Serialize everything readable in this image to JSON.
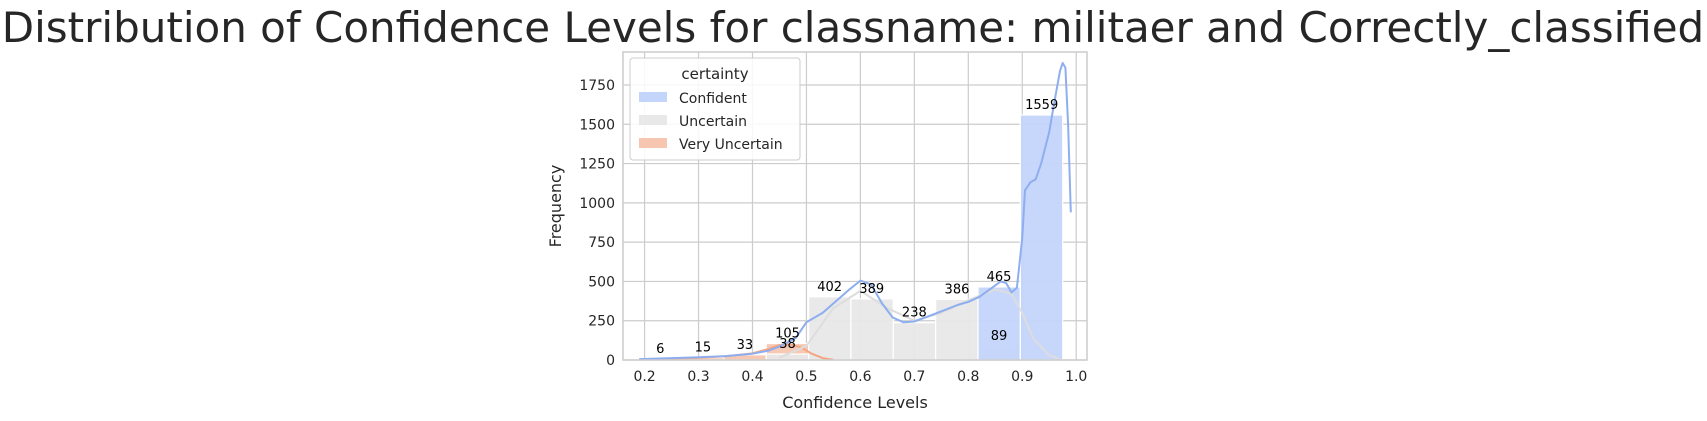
{
  "chart_data": {
    "type": "bar",
    "title": "Distribution of Confidence Levels for classname: militaer and Correctly_classified",
    "xlabel": "Confidence Levels",
    "ylabel": "Frequency",
    "xlim": [
      0.16,
      1.02
    ],
    "ylim": [
      0,
      1960
    ],
    "x_ticks": [
      "0.2",
      "0.3",
      "0.4",
      "0.5",
      "0.6",
      "0.7",
      "0.8",
      "0.9",
      "1.0"
    ],
    "x_tick_values": [
      0.2,
      0.3,
      0.4,
      0.5,
      0.6,
      0.7,
      0.8,
      0.9,
      1.0
    ],
    "y_ticks": [
      "0",
      "250",
      "500",
      "750",
      "1000",
      "1250",
      "1500",
      "1750"
    ],
    "y_tick_values": [
      0,
      250,
      500,
      750,
      1000,
      1250,
      1500,
      1750
    ],
    "grid": true,
    "legend": {
      "title": "certainty",
      "placement": "top-left",
      "entries": [
        {
          "label": "Confident",
          "color": "#c4d5fb"
        },
        {
          "label": "Uncertain",
          "color": "#e8e8e8"
        },
        {
          "label": "Very Uncertain",
          "color": "#f7c6b0"
        }
      ]
    },
    "bin_edges": [
      0.19,
      0.2685,
      0.347,
      0.4255,
      0.504,
      0.5825,
      0.661,
      0.7395,
      0.818,
      0.8965,
      0.975
    ],
    "series": [
      {
        "name": "Very Uncertain",
        "color": "#f7c6b0",
        "line_color": "#f4a582",
        "values": [
          6,
          15,
          33,
          105,
          0,
          0,
          0,
          0,
          0,
          0
        ],
        "kde": [
          [
            0.19,
            4
          ],
          [
            0.25,
            8
          ],
          [
            0.3,
            14
          ],
          [
            0.35,
            24
          ],
          [
            0.4,
            42
          ],
          [
            0.43,
            70
          ],
          [
            0.45,
            95
          ],
          [
            0.47,
            100
          ],
          [
            0.49,
            80
          ],
          [
            0.51,
            40
          ],
          [
            0.53,
            12
          ],
          [
            0.55,
            2
          ]
        ]
      },
      {
        "name": "Uncertain",
        "color": "#e8e8e8",
        "line_color": "#dddddd",
        "values": [
          0,
          0,
          0,
          38,
          402,
          389,
          238,
          386,
          89,
          0
        ],
        "kde": [
          [
            0.45,
            15
          ],
          [
            0.5,
            90
          ],
          [
            0.55,
            330
          ],
          [
            0.6,
            440
          ],
          [
            0.65,
            330
          ],
          [
            0.7,
            250
          ],
          [
            0.75,
            300
          ],
          [
            0.8,
            380
          ],
          [
            0.85,
            450
          ],
          [
            0.88,
            420
          ],
          [
            0.9,
            300
          ],
          [
            0.92,
            140
          ],
          [
            0.95,
            30
          ],
          [
            0.97,
            5
          ]
        ]
      },
      {
        "name": "Confident",
        "color": "#c4d5fb",
        "line_color": "#8eaef0",
        "values": [
          0,
          0,
          0,
          0,
          0,
          0,
          0,
          0,
          465,
          1559
        ],
        "kde": [
          [
            0.19,
            6
          ],
          [
            0.25,
            12
          ],
          [
            0.3,
            18
          ],
          [
            0.35,
            25
          ],
          [
            0.4,
            40
          ],
          [
            0.43,
            60
          ],
          [
            0.45,
            85
          ],
          [
            0.48,
            140
          ],
          [
            0.5,
            240
          ],
          [
            0.53,
            300
          ],
          [
            0.56,
            390
          ],
          [
            0.58,
            450
          ],
          [
            0.6,
            505
          ],
          [
            0.62,
            480
          ],
          [
            0.64,
            360
          ],
          [
            0.66,
            270
          ],
          [
            0.68,
            240
          ],
          [
            0.7,
            245
          ],
          [
            0.72,
            270
          ],
          [
            0.75,
            310
          ],
          [
            0.78,
            350
          ],
          [
            0.8,
            370
          ],
          [
            0.82,
            400
          ],
          [
            0.84,
            450
          ],
          [
            0.86,
            500
          ],
          [
            0.87,
            490
          ],
          [
            0.88,
            430
          ],
          [
            0.89,
            460
          ],
          [
            0.9,
            780
          ],
          [
            0.905,
            1080
          ],
          [
            0.915,
            1130
          ],
          [
            0.925,
            1150
          ],
          [
            0.935,
            1250
          ],
          [
            0.95,
            1450
          ],
          [
            0.96,
            1650
          ],
          [
            0.97,
            1840
          ],
          [
            0.975,
            1890
          ],
          [
            0.98,
            1860
          ],
          [
            0.985,
            1500
          ],
          [
            0.99,
            940
          ]
        ]
      }
    ],
    "bar_labels": [
      {
        "text": "6",
        "x": 0.229,
        "y": 6
      },
      {
        "text": "15",
        "x": 0.308,
        "y": 15
      },
      {
        "text": "33",
        "x": 0.386,
        "y": 33
      },
      {
        "text": "105",
        "x": 0.465,
        "y": 105
      },
      {
        "text": "38",
        "x": 0.465,
        "y": 38
      },
      {
        "text": "402",
        "x": 0.543,
        "y": 402
      },
      {
        "text": "389",
        "x": 0.621,
        "y": 389
      },
      {
        "text": "238",
        "x": 0.7,
        "y": 238
      },
      {
        "text": "386",
        "x": 0.779,
        "y": 386
      },
      {
        "text": "465",
        "x": 0.857,
        "y": 465
      },
      {
        "text": "89",
        "x": 0.857,
        "y": 89
      },
      {
        "text": "1559",
        "x": 0.936,
        "y": 1559
      }
    ]
  }
}
